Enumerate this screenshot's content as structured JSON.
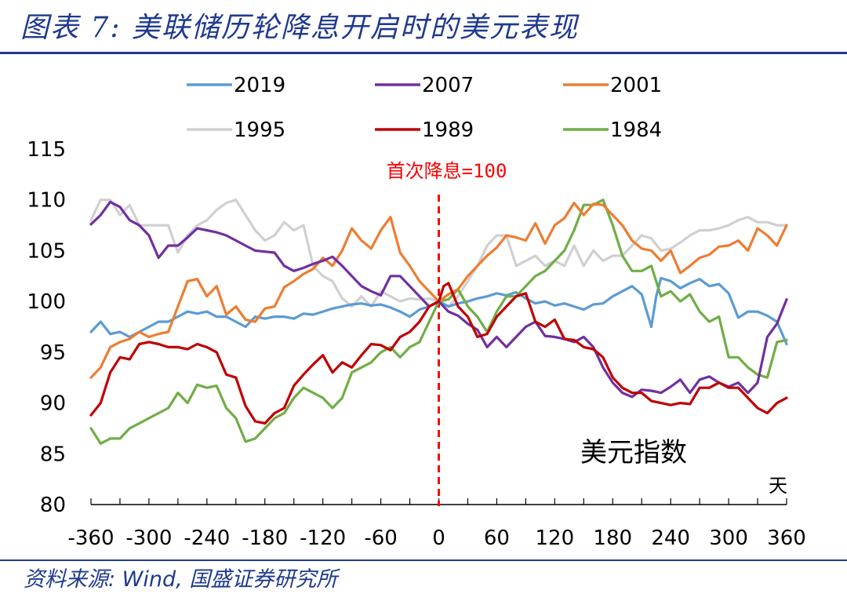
{
  "header": {
    "title": "图表 7:  美联储历轮降息开启时的美元表现"
  },
  "footer": {
    "source": "资料来源:  Wind,  国盛证券研究所"
  },
  "colors": {
    "title_blue": "#1f3a8f",
    "s2019": "#5b9bd5",
    "s2007": "#7030a0",
    "s2001": "#ed7d31",
    "s1995": "#d0d0d0",
    "s1989": "#c00000",
    "s1984": "#70ad47",
    "marker": "#ff0000"
  },
  "chart_data": {
    "type": "line",
    "title": "美元指数",
    "xlabel": "天",
    "ylabel": "",
    "xlim": [
      -360,
      360
    ],
    "ylim": [
      80,
      115
    ],
    "x_ticks": [
      -360,
      -300,
      -240,
      -180,
      -120,
      -60,
      0,
      60,
      120,
      180,
      240,
      300,
      360
    ],
    "y_ticks": [
      80,
      85,
      90,
      95,
      100,
      105,
      110,
      115
    ],
    "annotation": {
      "x": 0,
      "text": "首次降息=100"
    },
    "legend_position": "top",
    "series": [
      {
        "name": "2019",
        "color": "#5b9bd5",
        "x": [
          -360,
          -350,
          -340,
          -330,
          -320,
          -310,
          -300,
          -290,
          -280,
          -270,
          -260,
          -250,
          -240,
          -230,
          -220,
          -210,
          -200,
          -190,
          -180,
          -170,
          -160,
          -150,
          -140,
          -130,
          -120,
          -110,
          -100,
          -90,
          -80,
          -70,
          -60,
          -50,
          -40,
          -30,
          -20,
          -10,
          0,
          10,
          20,
          30,
          40,
          50,
          60,
          70,
          80,
          90,
          100,
          110,
          120,
          130,
          140,
          150,
          160,
          170,
          180,
          190,
          200,
          210,
          220,
          225,
          230,
          240,
          250,
          260,
          270,
          280,
          290,
          300,
          310,
          320,
          330,
          340,
          350,
          360
        ],
        "y": [
          97,
          98,
          96.8,
          97,
          96.5,
          97,
          97.5,
          98,
          98,
          98.5,
          99,
          98.8,
          99,
          98.5,
          98.5,
          98,
          97.5,
          98.5,
          98.3,
          98.5,
          98.5,
          98.3,
          98.8,
          98.7,
          99,
          99.3,
          99.5,
          99.7,
          99.8,
          99.6,
          99.7,
          99.4,
          99,
          98.5,
          99.2,
          99.5,
          100,
          99.5,
          99.8,
          100,
          100.3,
          100.5,
          100.8,
          100.6,
          100.9,
          100.3,
          99.8,
          100,
          99.6,
          99.8,
          99.5,
          99.2,
          99.7,
          99.8,
          100.5,
          101,
          101.5,
          100.7,
          97.5,
          100.5,
          102.3,
          102,
          101.3,
          101.8,
          102.2,
          101.5,
          101.7,
          100.8,
          98.4,
          99,
          99,
          98.6,
          98,
          95.8
        ]
      },
      {
        "name": "2007",
        "color": "#7030a0",
        "x": [
          -360,
          -350,
          -340,
          -330,
          -320,
          -310,
          -300,
          -290,
          -280,
          -270,
          -260,
          -250,
          -240,
          -230,
          -220,
          -210,
          -200,
          -190,
          -180,
          -170,
          -160,
          -150,
          -140,
          -130,
          -120,
          -110,
          -100,
          -90,
          -80,
          -70,
          -60,
          -50,
          -40,
          -30,
          -20,
          -10,
          0,
          10,
          20,
          30,
          40,
          50,
          60,
          70,
          80,
          90,
          100,
          110,
          120,
          130,
          140,
          150,
          160,
          170,
          180,
          190,
          200,
          210,
          220,
          230,
          240,
          250,
          260,
          270,
          280,
          290,
          300,
          310,
          320,
          330,
          340,
          350,
          360
        ],
        "y": [
          107.6,
          108.5,
          109.8,
          109.3,
          108,
          107.5,
          106.5,
          104.3,
          105.5,
          105.5,
          106.3,
          107.2,
          107,
          106.8,
          106.5,
          106,
          105.5,
          105,
          104.9,
          104.8,
          103.5,
          103,
          103.3,
          103.7,
          104,
          104.4,
          103.5,
          102.5,
          101.5,
          101,
          100.6,
          102.5,
          102.5,
          101.5,
          100.5,
          99.5,
          100,
          99,
          98.6,
          97.8,
          97.2,
          95.5,
          96.5,
          95.5,
          96.5,
          97.5,
          98,
          96.6,
          96.5,
          96.3,
          96,
          96.5,
          95.5,
          93.5,
          92,
          91,
          90.6,
          91.3,
          91.2,
          91,
          91.6,
          92.3,
          91,
          92.3,
          92.6,
          92,
          91.6,
          92,
          91,
          92,
          96.5,
          97.8,
          100.2
        ]
      },
      {
        "name": "2001",
        "color": "#ed7d31",
        "x": [
          -360,
          -350,
          -340,
          -330,
          -320,
          -310,
          -300,
          -290,
          -280,
          -270,
          -260,
          -250,
          -240,
          -230,
          -220,
          -210,
          -200,
          -190,
          -180,
          -170,
          -160,
          -150,
          -140,
          -130,
          -120,
          -110,
          -100,
          -90,
          -80,
          -70,
          -60,
          -50,
          -40,
          -30,
          -20,
          -10,
          0,
          10,
          20,
          30,
          40,
          50,
          60,
          70,
          80,
          90,
          100,
          110,
          120,
          130,
          140,
          150,
          160,
          170,
          180,
          190,
          200,
          210,
          220,
          230,
          240,
          250,
          260,
          270,
          280,
          290,
          300,
          310,
          320,
          330,
          340,
          350,
          360
        ],
        "y": [
          92.5,
          93.5,
          95.5,
          96,
          96.3,
          97,
          96.5,
          96.8,
          97,
          99.5,
          102,
          102.2,
          100.5,
          101.5,
          98.7,
          99.5,
          98.2,
          98,
          99.3,
          99.5,
          101.4,
          102,
          102.7,
          103.2,
          104.3,
          103.5,
          105,
          107.2,
          106,
          105.2,
          107,
          108.3,
          104.8,
          103.5,
          102,
          101,
          100,
          100.7,
          101.2,
          102.5,
          103.5,
          104.5,
          105.3,
          106.5,
          106.3,
          106,
          107.7,
          105.7,
          107.5,
          108.2,
          109.7,
          108.5,
          109.6,
          109.5,
          108.5,
          107.5,
          106,
          105.2,
          105,
          104,
          105,
          102.8,
          103.5,
          104.3,
          104.6,
          105.4,
          105.5,
          106,
          105,
          107.2,
          106.5,
          105.5,
          107.5
        ]
      },
      {
        "name": "1995",
        "color": "#d0d0d0",
        "x": [
          -360,
          -350,
          -340,
          -330,
          -320,
          -310,
          -300,
          -290,
          -280,
          -270,
          -260,
          -250,
          -240,
          -230,
          -220,
          -210,
          -200,
          -190,
          -180,
          -170,
          -160,
          -150,
          -140,
          -130,
          -120,
          -110,
          -100,
          -90,
          -80,
          -70,
          -60,
          -50,
          -40,
          -30,
          -20,
          -10,
          0,
          10,
          20,
          30,
          40,
          50,
          60,
          70,
          80,
          90,
          100,
          110,
          120,
          130,
          140,
          150,
          160,
          170,
          180,
          190,
          200,
          210,
          220,
          230,
          240,
          250,
          260,
          270,
          280,
          290,
          300,
          310,
          320,
          330,
          340,
          350,
          360
        ],
        "y": [
          108,
          110,
          110,
          108.5,
          109.5,
          107.5,
          107.5,
          107.5,
          107.5,
          104.8,
          106.5,
          107.5,
          108,
          109,
          109.7,
          110,
          108.5,
          107,
          106,
          106.5,
          107.8,
          107,
          107.5,
          103.5,
          102.5,
          102,
          100.3,
          99.5,
          100.5,
          99.5,
          101,
          100.5,
          100,
          100.3,
          100.2,
          100.3,
          100,
          99.5,
          100.5,
          102,
          103.5,
          105.5,
          106.5,
          106.5,
          103.5,
          104,
          104.5,
          103.5,
          104,
          103.5,
          105.5,
          103.5,
          105,
          104,
          104.5,
          104.5,
          105.5,
          106.5,
          106.2,
          105,
          105.2,
          105.8,
          106.5,
          107,
          107,
          107.2,
          107.5,
          108,
          108.3,
          107.8,
          107.8,
          107.5,
          107.5
        ]
      },
      {
        "name": "1989",
        "color": "#c00000",
        "x": [
          -360,
          -350,
          -340,
          -330,
          -320,
          -310,
          -300,
          -290,
          -280,
          -270,
          -260,
          -250,
          -240,
          -230,
          -220,
          -210,
          -200,
          -190,
          -180,
          -170,
          -160,
          -150,
          -140,
          -130,
          -120,
          -110,
          -100,
          -90,
          -80,
          -70,
          -60,
          -50,
          -40,
          -30,
          -20,
          -10,
          0,
          5,
          10,
          20,
          30,
          40,
          50,
          60,
          70,
          80,
          90,
          100,
          110,
          120,
          130,
          140,
          150,
          160,
          170,
          180,
          190,
          200,
          210,
          220,
          230,
          240,
          250,
          260,
          270,
          280,
          290,
          300,
          310,
          320,
          330,
          340,
          350,
          360
        ],
        "y": [
          88.8,
          90,
          93,
          94.5,
          94.3,
          95.8,
          96,
          95.8,
          95.5,
          95.5,
          95.3,
          95.8,
          95.5,
          95,
          92.8,
          92.5,
          89.7,
          88.2,
          88,
          89,
          89.5,
          91.7,
          92.8,
          93.8,
          94.7,
          93,
          94,
          93.5,
          94.7,
          95.8,
          95.7,
          95.2,
          96.5,
          97,
          98,
          99.5,
          100,
          101.5,
          101.8,
          99.5,
          98.5,
          96.5,
          96.8,
          98.5,
          99.5,
          100.5,
          100.8,
          98,
          97.5,
          98.2,
          96.3,
          96.2,
          95.5,
          95.3,
          94.5,
          92.5,
          91.5,
          91,
          91,
          90.2,
          90,
          89.8,
          90,
          89.9,
          91.5,
          91.5,
          92,
          91.5,
          91.5,
          90.5,
          89.5,
          89,
          90,
          90.5
        ]
      },
      {
        "name": "1984",
        "color": "#70ad47",
        "x": [
          -360,
          -350,
          -340,
          -330,
          -320,
          -310,
          -300,
          -290,
          -280,
          -270,
          -260,
          -250,
          -240,
          -230,
          -220,
          -210,
          -200,
          -190,
          -180,
          -170,
          -160,
          -150,
          -140,
          -130,
          -120,
          -110,
          -100,
          -90,
          -80,
          -70,
          -60,
          -50,
          -40,
          -30,
          -20,
          -10,
          0,
          10,
          20,
          30,
          40,
          50,
          60,
          70,
          80,
          90,
          100,
          110,
          120,
          130,
          140,
          150,
          160,
          170,
          180,
          190,
          200,
          210,
          220,
          230,
          240,
          250,
          260,
          270,
          280,
          290,
          300,
          310,
          320,
          330,
          340,
          350,
          360
        ],
        "y": [
          87.5,
          86,
          86.5,
          86.5,
          87.5,
          88,
          88.5,
          89,
          89.5,
          91,
          90,
          91.8,
          91.5,
          91.7,
          89.5,
          88.5,
          86.2,
          86.5,
          87.5,
          88.5,
          89,
          90.5,
          91.5,
          91,
          90.5,
          89.5,
          90.5,
          93,
          93.5,
          94,
          95,
          95.5,
          94.5,
          95.5,
          96,
          98,
          100,
          100.2,
          101.2,
          99.5,
          98.5,
          97,
          99,
          100.5,
          100.5,
          101.5,
          102.5,
          103,
          104,
          105,
          107,
          109.5,
          109.5,
          110,
          107.5,
          104.5,
          103,
          103,
          103.5,
          100.5,
          101,
          100,
          100.7,
          99,
          98,
          98.5,
          94.5,
          94.5,
          93.5,
          92.8,
          92.5,
          96,
          96.2
        ]
      }
    ]
  }
}
